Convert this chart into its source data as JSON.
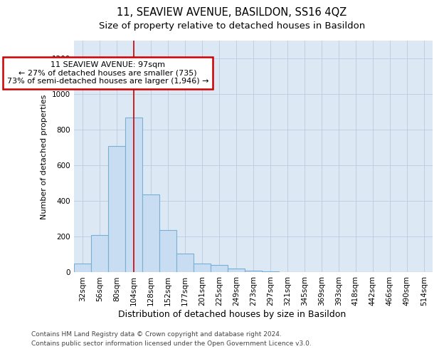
{
  "title": "11, SEAVIEW AVENUE, BASILDON, SS16 4QZ",
  "subtitle": "Size of property relative to detached houses in Basildon",
  "xlabel": "Distribution of detached houses by size in Basildon",
  "ylabel": "Number of detached properties",
  "bin_labels": [
    "32sqm",
    "56sqm",
    "80sqm",
    "104sqm",
    "128sqm",
    "152sqm",
    "177sqm",
    "201sqm",
    "225sqm",
    "249sqm",
    "273sqm",
    "297sqm",
    "321sqm",
    "345sqm",
    "369sqm",
    "393sqm",
    "418sqm",
    "442sqm",
    "466sqm",
    "490sqm",
    "514sqm"
  ],
  "bar_values": [
    50,
    210,
    710,
    870,
    435,
    235,
    105,
    50,
    40,
    20,
    10,
    3,
    0,
    0,
    0,
    0,
    0,
    0,
    0,
    0,
    0
  ],
  "bar_color": "#c9ddf2",
  "bar_edge_color": "#7aafd4",
  "vline_color": "#cc0000",
  "annotation_text": "11 SEAVIEW AVENUE: 97sqm\n← 27% of detached houses are smaller (735)\n73% of semi-detached houses are larger (1,946) →",
  "annotation_box_color": "#cc0000",
  "ylim": [
    0,
    1300
  ],
  "yticks": [
    0,
    200,
    400,
    600,
    800,
    1000,
    1200
  ],
  "footnote1": "Contains HM Land Registry data © Crown copyright and database right 2024.",
  "footnote2": "Contains public sector information licensed under the Open Government Licence v3.0.",
  "plot_bg_color": "#dde8f5",
  "title_fontsize": 10.5,
  "subtitle_fontsize": 9.5,
  "ylabel_fontsize": 8,
  "xlabel_fontsize": 9,
  "tick_fontsize": 7.5,
  "annotation_fontsize": 8,
  "footnote_fontsize": 6.5
}
